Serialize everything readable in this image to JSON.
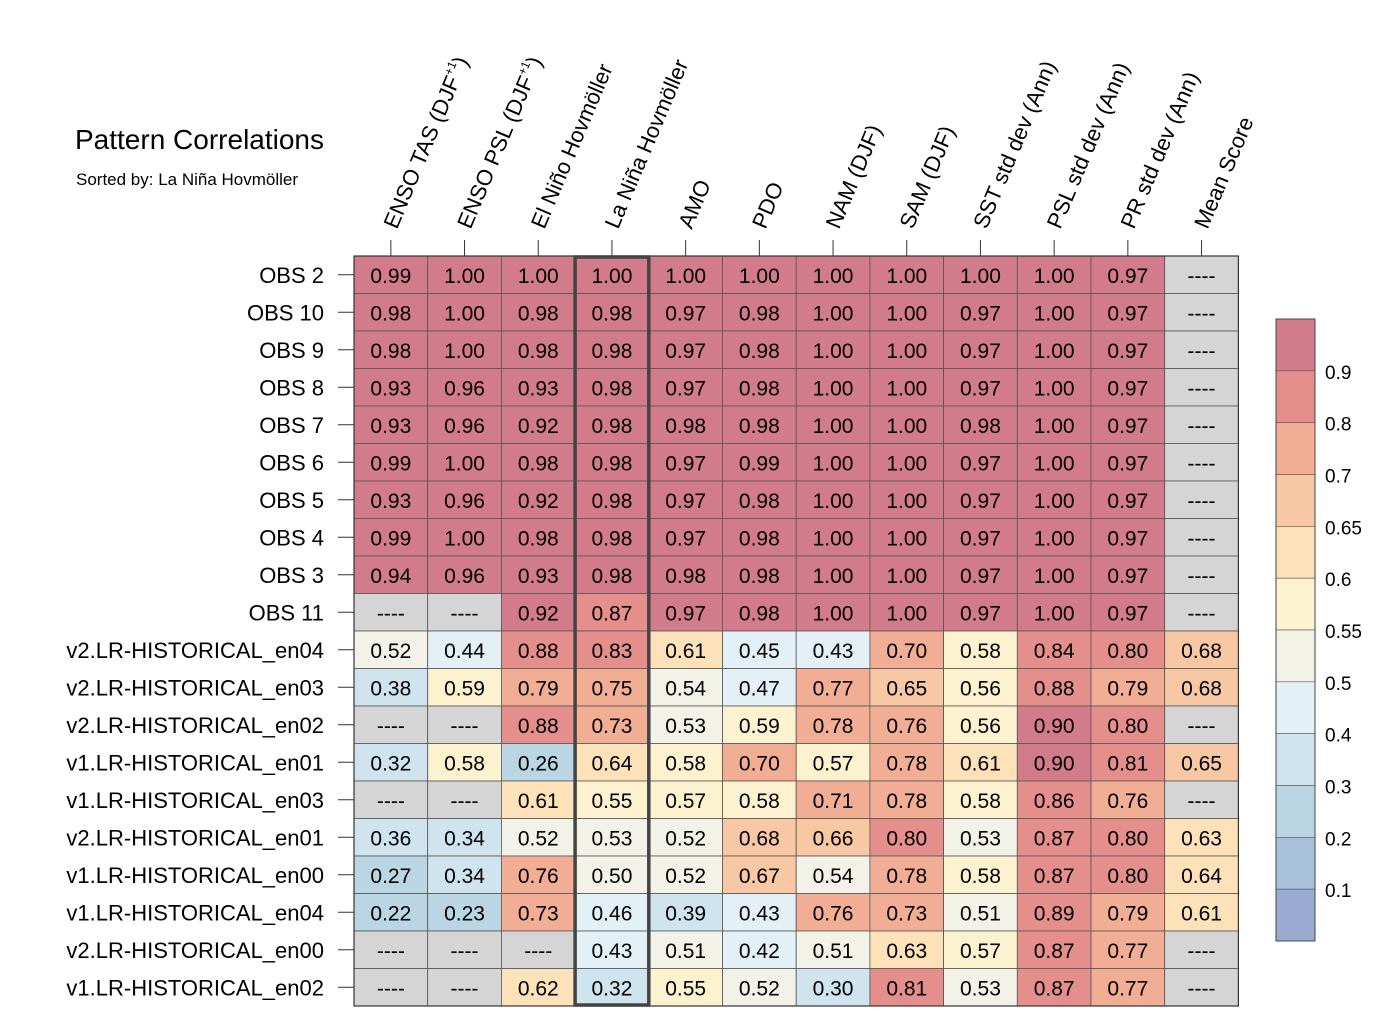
{
  "title": "Pattern Correlations",
  "subtitle": "Sorted by: La Niña Hovmöller",
  "colors": {
    "missing": "#d5d5d5",
    "grid": "#555555",
    "highlight_border": "#444444",
    "bins": [
      "#9aabd1",
      "#a8c2db",
      "#bad6e5",
      "#cfe4ee",
      "#e3f0f5",
      "#f2f2e9",
      "#fdf2cf",
      "#fde1b8",
      "#f8c8a4",
      "#f1ae95",
      "#e48f8b",
      "#d27b8b"
    ]
  },
  "chart_data": {
    "type": "heatmap",
    "columns": [
      "ENSO TAS (DJF+1)",
      "ENSO PSL (DJF+1)",
      "El Niño Hovmöller",
      "La Niña Hovmöller",
      "AMO",
      "PDO",
      "NAM (DJF)",
      "SAM (DJF)",
      "SST std dev (Ann)",
      "PSL std dev (Ann)",
      "PR std dev (Ann)",
      "Mean Score"
    ],
    "columns_display": [
      {
        "main": "ENSO TAS (DJF",
        "sup": "+1",
        "tail": ")"
      },
      {
        "main": "ENSO PSL (DJF",
        "sup": "+1",
        "tail": ")"
      },
      {
        "main": "El Niño Hovmöller",
        "sup": "",
        "tail": ""
      },
      {
        "main": "La Niña Hovmöller",
        "sup": "",
        "tail": ""
      },
      {
        "main": "AMO",
        "sup": "",
        "tail": ""
      },
      {
        "main": "PDO",
        "sup": "",
        "tail": ""
      },
      {
        "main": "NAM (DJF)",
        "sup": "",
        "tail": ""
      },
      {
        "main": "SAM (DJF)",
        "sup": "",
        "tail": ""
      },
      {
        "main": "SST std dev (Ann)",
        "sup": "",
        "tail": ""
      },
      {
        "main": "PSL std dev (Ann)",
        "sup": "",
        "tail": ""
      },
      {
        "main": "PR std dev (Ann)",
        "sup": "",
        "tail": ""
      },
      {
        "main": "Mean Score",
        "sup": "",
        "tail": ""
      }
    ],
    "rows": [
      "OBS 2",
      "OBS 10",
      "OBS 9",
      "OBS 8",
      "OBS 7",
      "OBS 6",
      "OBS 5",
      "OBS 4",
      "OBS 3",
      "OBS 11",
      "v2.LR-HISTORICAL_en04",
      "v2.LR-HISTORICAL_en03",
      "v2.LR-HISTORICAL_en02",
      "v1.LR-HISTORICAL_en01",
      "v1.LR-HISTORICAL_en03",
      "v2.LR-HISTORICAL_en01",
      "v1.LR-HISTORICAL_en00",
      "v1.LR-HISTORICAL_en04",
      "v2.LR-HISTORICAL_en00",
      "v1.LR-HISTORICAL_en02"
    ],
    "values": [
      [
        0.99,
        1.0,
        1.0,
        1.0,
        1.0,
        1.0,
        1.0,
        1.0,
        1.0,
        1.0,
        0.97,
        null
      ],
      [
        0.98,
        1.0,
        0.98,
        0.98,
        0.97,
        0.98,
        1.0,
        1.0,
        0.97,
        1.0,
        0.97,
        null
      ],
      [
        0.98,
        1.0,
        0.98,
        0.98,
        0.97,
        0.98,
        1.0,
        1.0,
        0.97,
        1.0,
        0.97,
        null
      ],
      [
        0.93,
        0.96,
        0.93,
        0.98,
        0.97,
        0.98,
        1.0,
        1.0,
        0.97,
        1.0,
        0.97,
        null
      ],
      [
        0.93,
        0.96,
        0.92,
        0.98,
        0.98,
        0.98,
        1.0,
        1.0,
        0.98,
        1.0,
        0.97,
        null
      ],
      [
        0.99,
        1.0,
        0.98,
        0.98,
        0.97,
        0.99,
        1.0,
        1.0,
        0.97,
        1.0,
        0.97,
        null
      ],
      [
        0.93,
        0.96,
        0.92,
        0.98,
        0.97,
        0.98,
        1.0,
        1.0,
        0.97,
        1.0,
        0.97,
        null
      ],
      [
        0.99,
        1.0,
        0.98,
        0.98,
        0.97,
        0.98,
        1.0,
        1.0,
        0.97,
        1.0,
        0.97,
        null
      ],
      [
        0.94,
        0.96,
        0.93,
        0.98,
        0.98,
        0.98,
        1.0,
        1.0,
        0.97,
        1.0,
        0.97,
        null
      ],
      [
        null,
        null,
        0.92,
        0.87,
        0.97,
        0.98,
        1.0,
        1.0,
        0.97,
        1.0,
        0.97,
        null
      ],
      [
        0.52,
        0.44,
        0.88,
        0.83,
        0.61,
        0.45,
        0.43,
        0.7,
        0.58,
        0.84,
        0.8,
        0.68
      ],
      [
        0.38,
        0.59,
        0.79,
        0.75,
        0.54,
        0.47,
        0.77,
        0.65,
        0.56,
        0.88,
        0.79,
        0.68
      ],
      [
        null,
        null,
        0.88,
        0.73,
        0.53,
        0.59,
        0.78,
        0.76,
        0.56,
        0.9,
        0.8,
        null
      ],
      [
        0.32,
        0.58,
        0.26,
        0.64,
        0.58,
        0.7,
        0.57,
        0.78,
        0.61,
        0.9,
        0.81,
        0.65
      ],
      [
        null,
        null,
        0.61,
        0.55,
        0.57,
        0.58,
        0.71,
        0.78,
        0.58,
        0.86,
        0.76,
        null
      ],
      [
        0.36,
        0.34,
        0.52,
        0.53,
        0.52,
        0.68,
        0.66,
        0.8,
        0.53,
        0.87,
        0.8,
        0.63
      ],
      [
        0.27,
        0.34,
        0.76,
        0.5,
        0.52,
        0.67,
        0.54,
        0.78,
        0.58,
        0.87,
        0.8,
        0.64
      ],
      [
        0.22,
        0.23,
        0.73,
        0.46,
        0.39,
        0.43,
        0.76,
        0.73,
        0.51,
        0.89,
        0.79,
        0.61
      ],
      [
        null,
        null,
        null,
        0.43,
        0.51,
        0.42,
        0.51,
        0.63,
        0.57,
        0.87,
        0.77,
        null
      ],
      [
        null,
        null,
        0.62,
        0.32,
        0.55,
        0.52,
        0.3,
        0.81,
        0.53,
        0.87,
        0.77,
        null
      ]
    ],
    "missing_label": "----",
    "highlight_column": "La Niña Hovmöller",
    "colorbar": {
      "bounds": [
        0.1,
        0.2,
        0.3,
        0.4,
        0.5,
        0.55,
        0.6,
        0.65,
        0.7,
        0.8,
        0.9
      ],
      "labels": [
        "0.1",
        "0.2",
        "0.3",
        "0.4",
        "0.5",
        "0.55",
        "0.6",
        "0.65",
        "0.7",
        "0.8",
        "0.9"
      ]
    }
  }
}
